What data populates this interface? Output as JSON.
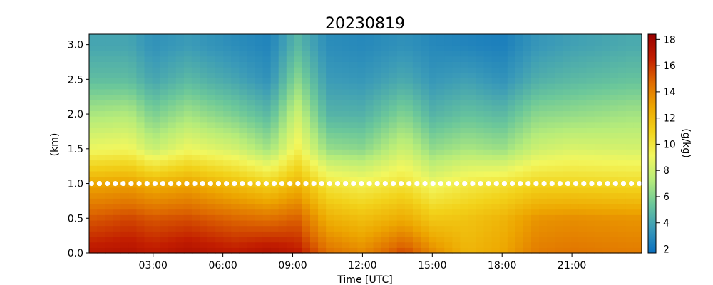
{
  "chart_data": {
    "type": "heatmap",
    "title": "20230819",
    "xlabel": "Time [UTC]",
    "ylabel": "(km)",
    "colorbar_label": "(g/kg)",
    "x_ticks": [
      "03:00",
      "06:00",
      "09:00",
      "12:00",
      "15:00",
      "18:00",
      "21:00"
    ],
    "x_tick_hours": [
      3,
      6,
      9,
      12,
      15,
      18,
      21
    ],
    "xlim_hours": [
      0.25,
      24.0
    ],
    "y_ticks": [
      "0.0",
      "0.5",
      "1.0",
      "1.5",
      "2.0",
      "2.5",
      "3.0"
    ],
    "ylim_km": [
      0.0,
      3.15
    ],
    "colorbar_ticks": [
      "2",
      "4",
      "6",
      "8",
      "10",
      "12",
      "14",
      "16",
      "18"
    ],
    "colorbar_range": [
      1.7,
      18.4
    ],
    "colormap": [
      "#0a6fbf",
      "#3a9ab8",
      "#6bc79a",
      "#b6ec7a",
      "#f2f75e",
      "#f2d21a",
      "#eda600",
      "#df6c00",
      "#c21d00",
      "#990000"
    ],
    "heights_km": [
      0.0,
      0.5,
      1.0,
      1.5,
      2.0,
      2.5,
      3.0
    ],
    "mixing_ratio_profiles": [
      {
        "hour": 0.5,
        "values": [
          17.0,
          15.2,
          12.8,
          9.0,
          7.0,
          5.0,
          4.0
        ]
      },
      {
        "hour": 2.0,
        "values": [
          17.2,
          15.6,
          13.0,
          9.2,
          7.2,
          5.0,
          4.0
        ]
      },
      {
        "hour": 3.0,
        "values": [
          16.8,
          15.2,
          12.4,
          7.8,
          5.8,
          4.0,
          3.2
        ]
      },
      {
        "hour": 4.5,
        "values": [
          17.3,
          15.4,
          12.8,
          9.0,
          6.8,
          4.8,
          3.6
        ]
      },
      {
        "hour": 6.5,
        "values": [
          16.8,
          14.8,
          11.8,
          8.2,
          5.8,
          4.0,
          3.0
        ]
      },
      {
        "hour": 8.0,
        "values": [
          17.3,
          14.5,
          11.0,
          6.8,
          4.8,
          3.2,
          2.6
        ]
      },
      {
        "hour": 9.2,
        "values": [
          16.8,
          15.0,
          12.2,
          9.5,
          8.0,
          6.2,
          4.8
        ]
      },
      {
        "hour": 10.5,
        "values": [
          14.6,
          12.4,
          10.0,
          6.5,
          4.6,
          3.6,
          3.0
        ]
      },
      {
        "hour": 12.0,
        "values": [
          13.8,
          11.8,
          9.5,
          6.2,
          4.5,
          3.4,
          2.8
        ]
      },
      {
        "hour": 13.8,
        "values": [
          15.6,
          12.6,
          10.2,
          8.0,
          6.0,
          4.2,
          3.2
        ]
      },
      {
        "hour": 15.0,
        "values": [
          13.8,
          11.4,
          9.0,
          6.4,
          4.6,
          3.4,
          2.8
        ]
      },
      {
        "hour": 16.5,
        "values": [
          12.2,
          11.6,
          9.8,
          7.0,
          5.2,
          3.8,
          2.6
        ]
      },
      {
        "hour": 18.0,
        "values": [
          12.8,
          12.2,
          10.2,
          6.6,
          4.8,
          3.2,
          2.4
        ]
      },
      {
        "hour": 19.5,
        "values": [
          14.2,
          13.4,
          10.8,
          8.0,
          6.2,
          4.4,
          3.4
        ]
      },
      {
        "hour": 21.0,
        "values": [
          14.4,
          13.6,
          10.8,
          8.4,
          6.4,
          4.8,
          3.8
        ]
      },
      {
        "hour": 23.5,
        "values": [
          14.2,
          13.4,
          10.6,
          8.2,
          6.8,
          5.2,
          4.2
        ]
      }
    ],
    "marker_line": {
      "height_km": 1.0,
      "color": "#ffffff"
    },
    "grid": false,
    "legend": "colorbar-right"
  }
}
